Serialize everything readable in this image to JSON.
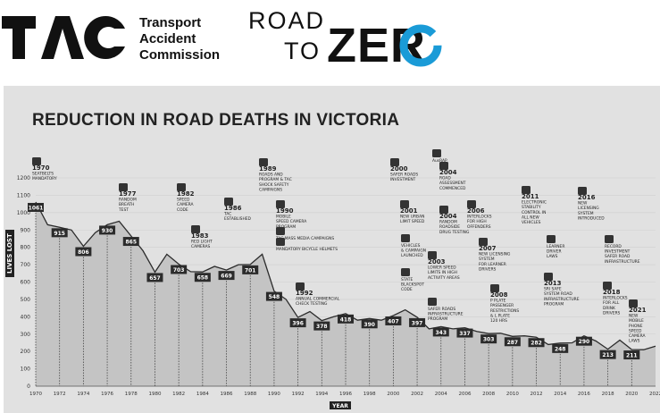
{
  "header": {
    "tac_logo_text": "TAC",
    "tac_name_lines": [
      "Transport",
      "Accident",
      "Commission"
    ],
    "rtz_road": "ROAD",
    "rtz_to": "TO",
    "rtz_zero": "ZER"
  },
  "chart_data": {
    "type": "area",
    "title": "REDUCTION IN ROAD DEATHS IN VICTORIA",
    "xlabel": "YEAR",
    "ylabel": "LIVES LOST",
    "xlim": [
      1970,
      2022
    ],
    "ylim": [
      0,
      1200
    ],
    "yticks": [
      0,
      100,
      200,
      300,
      400,
      500,
      600,
      700,
      800,
      900,
      1000,
      1100,
      1200
    ],
    "xticks": [
      1970,
      1972,
      1974,
      1976,
      1978,
      1980,
      1982,
      1984,
      1986,
      1988,
      1990,
      1992,
      1994,
      1996,
      1998,
      2000,
      2002,
      2004,
      2006,
      2008,
      2010,
      2012,
      2014,
      2016,
      2018,
      2020,
      2022
    ],
    "xtick_labels": [
      "1970",
      "1972",
      "1974",
      "1976",
      "1978",
      "1980",
      "1982",
      "1984",
      "1986",
      "1988",
      "1990",
      "1992",
      "1994",
      "1996",
      "1998",
      "2000",
      "2002",
      "2004",
      "2006",
      "2008",
      "2010",
      "2012",
      "2014",
      "2016",
      "2018",
      "2020",
      "2022"
    ],
    "series": [
      {
        "x": [
          1970,
          1971,
          1972,
          1973,
          1974,
          1975,
          1976,
          1977,
          1978,
          1979,
          1980,
          1981,
          1982,
          1983,
          1984,
          1985,
          1986,
          1987,
          1988,
          1989,
          1990,
          1991,
          1992,
          1993,
          1994,
          1995,
          1996,
          1997,
          1998,
          1999,
          2000,
          2001,
          2002,
          2003,
          2004,
          2005,
          2006,
          2007,
          2008,
          2009,
          2010,
          2011,
          2012,
          2013,
          2014,
          2015,
          2016,
          2017,
          2018,
          2019,
          2020,
          2021,
          2022
        ],
        "values": [
          1061,
          930,
          915,
          900,
          806,
          885,
          930,
          950,
          865,
          780,
          657,
          760,
          703,
          660,
          658,
          690,
          669,
          700,
          701,
          760,
          548,
          500,
          396,
          430,
          378,
          400,
          418,
          380,
          390,
          380,
          407,
          440,
          397,
          330,
          343,
          330,
          337,
          315,
          303,
          305,
          287,
          290,
          282,
          240,
          248,
          250,
          290,
          260,
          213,
          265,
          211,
          210,
          230
        ]
      }
    ],
    "data_labels": [
      {
        "year": 1970,
        "value": 1061,
        "text": "1061"
      },
      {
        "year": 1972,
        "value": 915,
        "text": "915"
      },
      {
        "year": 1974,
        "value": 806,
        "text": "806"
      },
      {
        "year": 1976,
        "value": 930,
        "text": "930"
      },
      {
        "year": 1978,
        "value": 865,
        "text": "865"
      },
      {
        "year": 1980,
        "value": 657,
        "text": "657"
      },
      {
        "year": 1982,
        "value": 703,
        "text": "703"
      },
      {
        "year": 1984,
        "value": 658,
        "text": "658"
      },
      {
        "year": 1986,
        "value": 669,
        "text": "669"
      },
      {
        "year": 1988,
        "value": 701,
        "text": "701"
      },
      {
        "year": 1990,
        "value": 548,
        "text": "548"
      },
      {
        "year": 1992,
        "value": 396,
        "text": "396"
      },
      {
        "year": 1994,
        "value": 378,
        "text": "378"
      },
      {
        "year": 1996,
        "value": 418,
        "text": "418"
      },
      {
        "year": 1998,
        "value": 390,
        "text": "390"
      },
      {
        "year": 2000,
        "value": 407,
        "text": "407"
      },
      {
        "year": 2002,
        "value": 397,
        "text": "397"
      },
      {
        "year": 2004,
        "value": 343,
        "text": "343"
      },
      {
        "year": 2006,
        "value": 337,
        "text": "337"
      },
      {
        "year": 2008,
        "value": 303,
        "text": "303"
      },
      {
        "year": 2010,
        "value": 287,
        "text": "287"
      },
      {
        "year": 2012,
        "value": 282,
        "text": "282"
      },
      {
        "year": 2014,
        "value": 248,
        "text": "248"
      },
      {
        "year": 2016,
        "value": 290,
        "text": "290"
      },
      {
        "year": 2018,
        "value": 213,
        "text": "213"
      },
      {
        "year": 2020,
        "value": 211,
        "text": "211"
      }
    ],
    "annotations": [
      {
        "year": 1970,
        "lines": [
          "1970",
          "SEATBELTS",
          "MANDATORY"
        ]
      },
      {
        "year": 1977,
        "lines": [
          "1977",
          "RANDOM",
          "BREATH",
          "TEST"
        ]
      },
      {
        "year": 1982,
        "lines": [
          "1982",
          "SPEED",
          "CAMERA",
          "CODE"
        ]
      },
      {
        "year": 1983,
        "lines": [
          "1983",
          "RED LIGHT",
          "CAMERAS"
        ]
      },
      {
        "year": 1986,
        "lines": [
          "1986",
          "TAC",
          "ESTABLISHED"
        ]
      },
      {
        "year": 1989,
        "lines": [
          "1989",
          "ROADS AND",
          "PROGRAM & TAC",
          "SHOCK SAFETY",
          "CAMPAIGNS"
        ]
      },
      {
        "year": 1990,
        "lines": [
          "1990",
          "MOBILE",
          "SPEED CAMERA",
          "PROGRAM"
        ]
      },
      {
        "year": 1990,
        "lines": [
          "TAC MASS MEDIA CAMPAIGNS"
        ]
      },
      {
        "year": 1990,
        "lines": [
          "MANDATORY BICYCLE HELMETS"
        ]
      },
      {
        "year": 1992,
        "lines": [
          "1992",
          "ANNUAL COMMERCIAL",
          "CHECK TESTING"
        ]
      },
      {
        "year": 2000,
        "lines": [
          "2000",
          "SAFER ROADS",
          "INVESTMENT"
        ]
      },
      {
        "year": 2001,
        "lines": [
          "2001",
          "NEW URBAN",
          "LIMIT SPEED"
        ]
      },
      {
        "year": 2001,
        "lines": [
          "VEHICLES",
          "& CAMPAIGN",
          "LAUNCHED"
        ]
      },
      {
        "year": 2001,
        "lines": [
          "STATE",
          "BLACKSPOT",
          "CODE"
        ]
      },
      {
        "year": 2003,
        "lines": [
          "2003",
          "LOWER SPEED",
          "LIMITS IN HIGH",
          "ACTIVITY AREAS"
        ]
      },
      {
        "year": 2003,
        "lines": [
          "SAFER ROADS",
          "INFRASTRUCTURE",
          "PROGRAM"
        ]
      },
      {
        "year": 2004,
        "lines": [
          "AusRAP"
        ]
      },
      {
        "year": 2004,
        "lines": [
          "2004",
          "ROAD",
          "ASSESSMENT",
          "COMMENCED"
        ]
      },
      {
        "year": 2004,
        "lines": [
          "2004",
          "RANDOM",
          "ROADSIDE",
          "DRUG TESTING"
        ]
      },
      {
        "year": 2006,
        "lines": [
          "2006",
          "INTERLOCKS",
          "FOR HIGH",
          "OFFENDERS"
        ]
      },
      {
        "year": 2007,
        "lines": [
          "2007",
          "NEW LICENSING",
          "SYSTEM",
          "FOR LEARNER",
          "DRIVERS"
        ]
      },
      {
        "year": 2008,
        "lines": [
          "2008",
          "P PLATE",
          "PASSENGER",
          "RESTRICTIONS",
          "& L PLATE",
          "120 HRS"
        ]
      },
      {
        "year": 2011,
        "lines": [
          "2011",
          "ELECTRONIC",
          "STABILITY",
          "CONTROL IN",
          "ALL NEW",
          "VEHICLES"
        ]
      },
      {
        "year": 2011,
        "lines": [
          "LEARNER",
          "DRIVER",
          "LAWS"
        ]
      },
      {
        "year": 2013,
        "lines": [
          "2013",
          "SRI SAFE",
          "SYSTEM ROAD",
          "INFRASTRUCTURE",
          "PROGRAM"
        ]
      },
      {
        "year": 2016,
        "lines": [
          "2016",
          "NEW",
          "LICENSING",
          "SYSTEM",
          "INTRODUCED"
        ]
      },
      {
        "year": 2016,
        "lines": [
          "RECORD",
          "INVESTMENT",
          "SAFER ROAD",
          "INFRASTRUCTURE"
        ]
      },
      {
        "year": 2018,
        "lines": [
          "2018",
          "INTERLOCKS",
          "FOR ALL",
          "DRINK",
          "DRIVERS"
        ]
      },
      {
        "year": 2021,
        "lines": [
          "2021",
          "NEW",
          "MOBILE",
          "PHONE",
          "SPEED",
          "CAMERA",
          "LAWS"
        ]
      }
    ]
  }
}
